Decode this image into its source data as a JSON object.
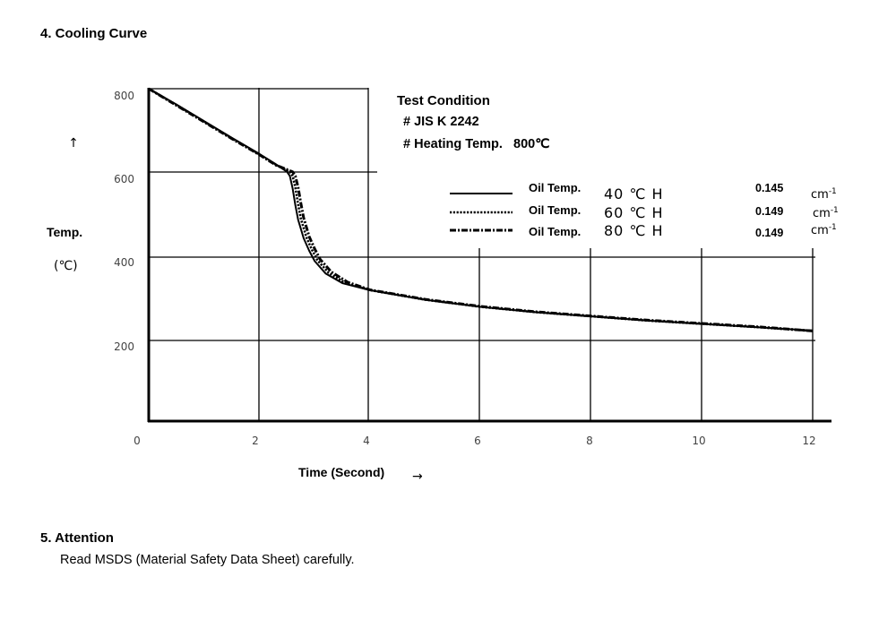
{
  "section4": {
    "heading": "4. Cooling Curve"
  },
  "section5": {
    "heading": "5. Attention",
    "text": "Read MSDS (Material Safety Data Sheet) carefully."
  },
  "chart_data": {
    "type": "line",
    "xlabel": "Time (Second)",
    "xlabel_arrow": "→",
    "ylabel": "Temp.",
    "yunit": "(℃)",
    "ylabel_arrow": "↑",
    "xlim": [
      0,
      12
    ],
    "ylim": [
      0,
      800
    ],
    "x_ticks": [
      "0",
      "2",
      "4",
      "6",
      "8",
      "10",
      "12"
    ],
    "y_ticks": [
      "800",
      "600",
      "400",
      "200"
    ],
    "grid": true,
    "test_condition": {
      "title": "Test Condition",
      "lines": [
        "# JIS K 2242",
        "# Heating Temp.   800℃"
      ]
    },
    "series": [
      {
        "name": "Oil Temp.",
        "temp_label": "40 ℃ H",
        "h_value": "0.145",
        "unit": "cm",
        "unit_exp": "-1",
        "style": "solid",
        "x": [
          0,
          0.5,
          1.0,
          1.5,
          2.0,
          2.3,
          2.5,
          2.55,
          2.6,
          2.65,
          2.7,
          2.8,
          2.9,
          3.0,
          3.2,
          3.5,
          4.0,
          5.0,
          6.0,
          7.0,
          8.0,
          9.0,
          10.0,
          11.0,
          12.0
        ],
        "y": [
          800,
          762,
          722,
          682,
          643,
          618,
          600,
          590,
          560,
          520,
          485,
          440,
          410,
          385,
          355,
          332,
          315,
          292,
          275,
          262,
          252,
          242,
          234,
          226,
          218
        ]
      },
      {
        "name": "Oil Temp.",
        "temp_label": "60 ℃ H",
        "h_value": "0.149",
        "unit": "cm",
        "unit_exp": "-1",
        "style": "dotted",
        "x": [
          0,
          0.5,
          1.0,
          1.5,
          2.0,
          2.3,
          2.55,
          2.6,
          2.65,
          2.7,
          2.75,
          2.85,
          2.95,
          3.05,
          3.25,
          3.55,
          4.0,
          5.0,
          6.0,
          7.0,
          8.0,
          9.0,
          10.0,
          11.0,
          12.0
        ],
        "y": [
          800,
          761,
          721,
          681,
          642,
          617,
          600,
          590,
          562,
          522,
          487,
          442,
          412,
          387,
          357,
          333,
          315,
          292,
          275,
          262,
          252,
          242,
          234,
          226,
          217
        ]
      },
      {
        "name": "Oil Temp.",
        "temp_label": "80 ℃ H",
        "h_value": "0.149",
        "unit": "cm",
        "unit_exp": "-1",
        "style": "dashdot",
        "x": [
          0,
          0.5,
          1.0,
          1.5,
          2.0,
          2.3,
          2.6,
          2.65,
          2.7,
          2.75,
          2.8,
          2.9,
          3.0,
          3.1,
          3.3,
          3.6,
          4.0,
          5.0,
          6.0,
          7.0,
          8.0,
          9.0,
          10.0,
          11.0,
          12.0
        ],
        "y": [
          800,
          760,
          720,
          680,
          641,
          616,
          600,
          590,
          563,
          524,
          489,
          444,
          414,
          389,
          359,
          334,
          316,
          293,
          276,
          263,
          253,
          243,
          235,
          227,
          217
        ]
      }
    ]
  }
}
